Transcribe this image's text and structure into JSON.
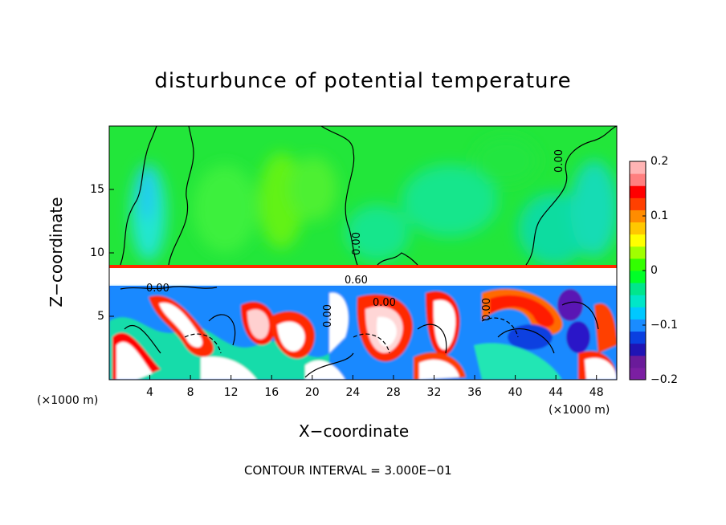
{
  "chart_data": {
    "type": "heatmap",
    "title": "disturbunce of potential temperature",
    "xlabel": "X−coordinate",
    "ylabel": "Z−coordinate",
    "x_unit_left": "(×1000 m)",
    "x_unit_right": "(×1000 m)",
    "footer": "CONTOUR INTERVAL = 3.000E−01",
    "xlim": [
      0,
      50
    ],
    "ylim": [
      0,
      20
    ],
    "x_ticks": [
      "4",
      "8",
      "12",
      "16",
      "20",
      "24",
      "28",
      "32",
      "36",
      "40",
      "44",
      "48"
    ],
    "y_ticks": [
      "5",
      "10",
      "15"
    ],
    "colorbar": {
      "range": [
        -0.2,
        0.2
      ],
      "tick_labels": [
        "0.2",
        "0.1",
        "0",
        "−0.1",
        "−0.2"
      ],
      "colors": [
        "#7b1fa2",
        "#6a1b9a",
        "#2014b4",
        "#0a40e0",
        "#1a8cff",
        "#00c8ff",
        "#00e6c8",
        "#00e68c",
        "#00ff28",
        "#32ff00",
        "#a0ff00",
        "#ffff00",
        "#ffc800",
        "#ff8c00",
        "#ff4000",
        "#ff0000",
        "#ff7f7f",
        "#ffb4b4"
      ]
    },
    "contour_labels": [
      "0.00",
      "0.00",
      "0.00",
      "0.00",
      "0.60",
      "0.00",
      "0.00"
    ],
    "contour_interval": 0.3,
    "layers": [
      {
        "name": "upper",
        "z_range": [
          9,
          20
        ],
        "dominant": "near zero (green)"
      },
      {
        "name": "interface",
        "z_range": [
          7.5,
          9
        ],
        "dominant": "strong positive (white / red)"
      },
      {
        "name": "lower",
        "z_range": [
          0,
          7.5
        ],
        "dominant": "turbulent, mixed sign"
      }
    ]
  }
}
